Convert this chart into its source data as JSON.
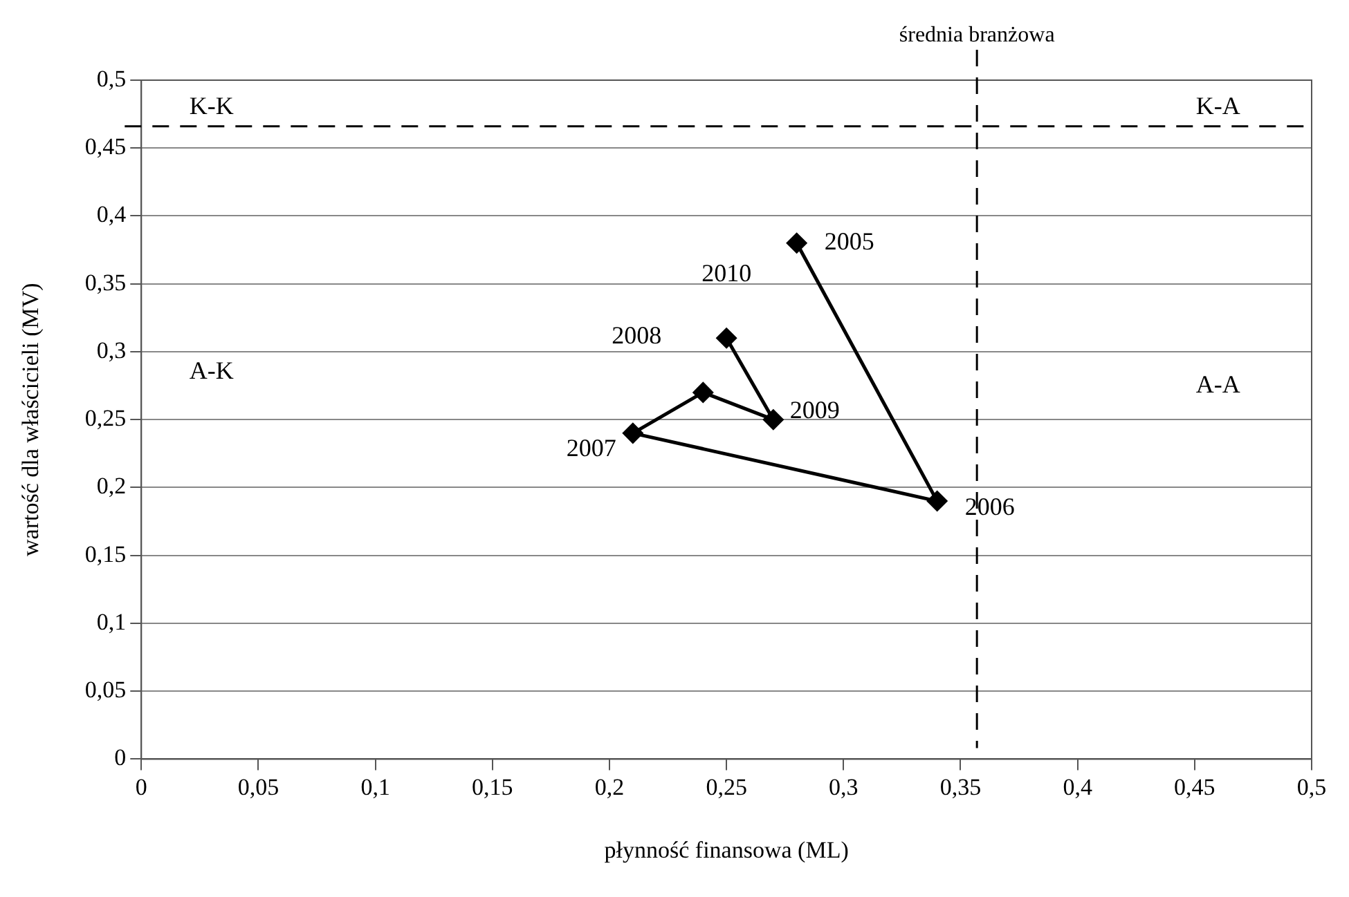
{
  "chart_data": {
    "type": "line",
    "xlabel": "płynność finansowa (ML)",
    "ylabel": "wartość dla właścicieli (MV)",
    "x": [
      0.28,
      0.34,
      0.21,
      0.24,
      0.27,
      0.25
    ],
    "series": [
      {
        "color": "#000000",
        "values": [
          0.38,
          0.19,
          0.24,
          0.27,
          0.25,
          0.31
        ]
      }
    ],
    "marker": "diamond",
    "line_style": "solid",
    "xlim": [
      0,
      0.5
    ],
    "ylim": [
      0,
      0.5
    ],
    "xticks": [
      0,
      {
        "value": 0.05,
        "label": "0,05"
      },
      {
        "value": 0.1,
        "label": "0,1"
      },
      {
        "value": 0.15,
        "label": "0,15"
      },
      {
        "value": 0.2,
        "label": "0,2"
      },
      {
        "value": 0.25,
        "label": "0,25"
      },
      {
        "value": 0.3,
        "label": "0,3"
      },
      {
        "value": 0.35,
        "label": "0,35"
      },
      {
        "value": 0.4,
        "label": "0,4"
      },
      {
        "value": 0.45,
        "label": "0,45"
      },
      {
        "value": 0.5,
        "label": "0,5"
      }
    ],
    "yticks": [
      0,
      {
        "value": 0.05,
        "label": "0,05"
      },
      {
        "value": 0.1,
        "label": "0,1"
      },
      {
        "value": 0.15,
        "label": "0,15"
      },
      {
        "value": 0.2,
        "label": "0,2"
      },
      {
        "value": 0.25,
        "label": "0,25"
      },
      {
        "value": 0.3,
        "label": "0,3"
      },
      {
        "value": 0.35,
        "label": "0,35"
      },
      {
        "value": 0.4,
        "label": "0,4"
      },
      {
        "value": 0.45,
        "label": "0,45"
      },
      {
        "value": 0.5,
        "label": "0,5"
      }
    ],
    "grid": "y",
    "legend": false,
    "ref_lines": [
      {
        "axis": "x",
        "value": 0.357,
        "label": "średnia branżowa",
        "color": "#000000",
        "line_style": "dashed"
      },
      {
        "axis": "y",
        "value": 0.466,
        "color": "#000000",
        "line_style": "dashed"
      }
    ],
    "annotations": [
      "K-K",
      "K-A",
      "A-K",
      "A-A",
      {
        "text": "2005",
        "x": 0.28,
        "y": 0.38
      },
      {
        "text": "2006",
        "x": 0.34,
        "y": 0.19
      },
      {
        "text": "2007",
        "x": 0.21,
        "y": 0.24
      },
      {
        "text": "2008",
        "x": 0.24,
        "y": 0.27
      },
      {
        "text": "2009",
        "x": 0.27,
        "y": 0.25
      },
      {
        "text": "2010",
        "x": 0.25,
        "y": 0.31
      }
    ]
  }
}
